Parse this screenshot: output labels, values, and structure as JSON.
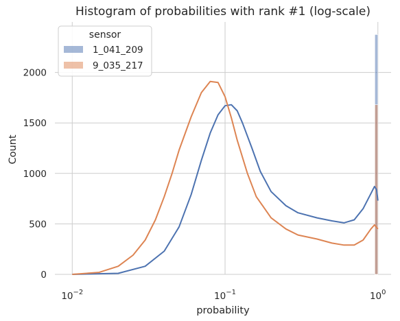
{
  "chart_data": {
    "type": "histogram",
    "title": "Histogram of probabilities with rank #1 (log-scale)",
    "xlabel": "probability",
    "ylabel": "Count",
    "x_scale": "log",
    "xlim": [
      0.0077,
      1.22
    ],
    "ylim": [
      0,
      2500
    ],
    "x_ticks": [
      {
        "value": 0.01,
        "base": "10",
        "exp": "−2"
      },
      {
        "value": 0.1,
        "base": "10",
        "exp": "−1"
      },
      {
        "value": 1,
        "base": "10",
        "exp": "0"
      }
    ],
    "y_ticks": [
      0,
      500,
      1000,
      1500,
      2000
    ],
    "grid": true,
    "legend": {
      "title": "sensor",
      "placement": "top-left"
    },
    "log_bin_edges": {
      "start": -2,
      "end": 0,
      "count": 100
    },
    "series": [
      {
        "name": "1_041_209",
        "color": "#4c72b0",
        "bar_values": [
          0,
          0,
          0,
          0,
          0,
          0,
          0,
          0,
          0,
          0,
          0,
          0,
          0,
          0,
          0,
          0,
          0,
          0,
          0,
          0,
          0,
          0,
          0,
          0,
          0,
          0,
          0,
          0,
          0,
          0,
          0,
          0,
          0,
          0,
          0,
          0,
          0,
          0,
          0,
          0,
          0,
          0,
          0,
          0,
          0,
          0,
          0,
          0,
          0,
          0,
          0,
          0,
          0,
          0,
          0,
          0,
          0,
          0,
          0,
          0,
          0,
          0,
          0,
          0,
          0,
          0,
          0,
          0,
          0,
          0,
          0,
          0,
          0,
          0,
          0,
          0,
          0,
          0,
          0,
          0,
          0,
          0,
          0,
          0,
          0,
          0,
          0,
          0,
          0,
          0,
          0,
          0,
          0,
          0,
          0,
          0,
          0,
          0,
          0,
          2375
        ],
        "kde": [
          [
            0.01,
            0
          ],
          [
            0.02,
            10
          ],
          [
            0.03,
            80
          ],
          [
            0.04,
            230
          ],
          [
            0.05,
            470
          ],
          [
            0.06,
            790
          ],
          [
            0.07,
            1130
          ],
          [
            0.08,
            1400
          ],
          [
            0.09,
            1580
          ],
          [
            0.1,
            1670
          ],
          [
            0.11,
            1680
          ],
          [
            0.12,
            1620
          ],
          [
            0.13,
            1500
          ],
          [
            0.15,
            1250
          ],
          [
            0.17,
            1020
          ],
          [
            0.2,
            820
          ],
          [
            0.25,
            680
          ],
          [
            0.3,
            610
          ],
          [
            0.4,
            560
          ],
          [
            0.5,
            530
          ],
          [
            0.6,
            510
          ],
          [
            0.7,
            540
          ],
          [
            0.8,
            650
          ],
          [
            0.9,
            800
          ],
          [
            0.95,
            870
          ],
          [
            0.98,
            840
          ],
          [
            1.0,
            730
          ]
        ]
      },
      {
        "name": "9_035_217",
        "color": "#dd8452",
        "bar_values": [
          0,
          0,
          0,
          0,
          0,
          0,
          0,
          0,
          0,
          0,
          0,
          0,
          0,
          0,
          0,
          0,
          0,
          0,
          0,
          0,
          0,
          0,
          0,
          0,
          0,
          0,
          0,
          0,
          0,
          0,
          0,
          0,
          0,
          0,
          0,
          0,
          0,
          0,
          0,
          0,
          0,
          0,
          0,
          0,
          0,
          0,
          0,
          0,
          0,
          0,
          0,
          0,
          0,
          0,
          0,
          0,
          0,
          0,
          0,
          0,
          0,
          0,
          0,
          0,
          0,
          0,
          0,
          0,
          0,
          0,
          0,
          0,
          0,
          0,
          0,
          0,
          0,
          0,
          0,
          0,
          0,
          0,
          0,
          0,
          0,
          0,
          0,
          0,
          0,
          0,
          0,
          0,
          0,
          0,
          0,
          0,
          0,
          0,
          0,
          1680
        ],
        "kde": [
          [
            0.01,
            0
          ],
          [
            0.015,
            20
          ],
          [
            0.02,
            80
          ],
          [
            0.025,
            190
          ],
          [
            0.03,
            340
          ],
          [
            0.035,
            540
          ],
          [
            0.04,
            770
          ],
          [
            0.045,
            1000
          ],
          [
            0.05,
            1230
          ],
          [
            0.06,
            1560
          ],
          [
            0.07,
            1800
          ],
          [
            0.08,
            1910
          ],
          [
            0.09,
            1900
          ],
          [
            0.1,
            1760
          ],
          [
            0.11,
            1550
          ],
          [
            0.12,
            1330
          ],
          [
            0.14,
            1000
          ],
          [
            0.16,
            770
          ],
          [
            0.2,
            560
          ],
          [
            0.25,
            450
          ],
          [
            0.3,
            390
          ],
          [
            0.4,
            350
          ],
          [
            0.5,
            310
          ],
          [
            0.6,
            290
          ],
          [
            0.7,
            290
          ],
          [
            0.8,
            340
          ],
          [
            0.9,
            450
          ],
          [
            0.95,
            490
          ],
          [
            1.0,
            450
          ]
        ]
      }
    ]
  }
}
